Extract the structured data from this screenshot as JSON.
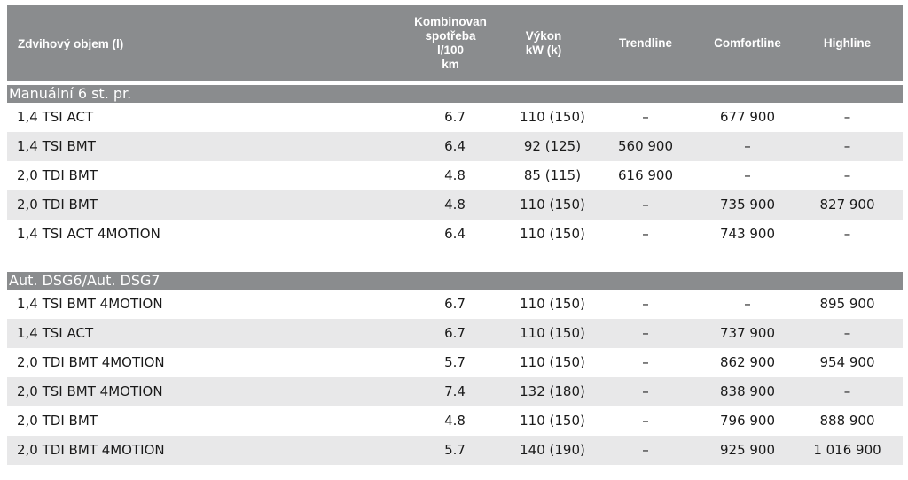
{
  "header": {
    "engine": "Zdvihový objem (l)",
    "consumption": [
      "Kombinovan",
      "spotřeba",
      "l/100",
      "km"
    ],
    "power": [
      "Výkon",
      "kW (k)"
    ],
    "trendline": "Trendline",
    "comfortline": "Comfortline",
    "highline": "Highline"
  },
  "sections": [
    {
      "title": "Manuální 6 st. pr.",
      "rows": [
        {
          "engine": "1,4 TSI ACT",
          "consumption": "6.7",
          "power": "110 (150)",
          "trendline": "–",
          "comfortline": "677 900",
          "highline": "–"
        },
        {
          "engine": "1,4 TSI BMT",
          "consumption": "6.4",
          "power": "92 (125)",
          "trendline": "560 900",
          "comfortline": "–",
          "highline": "–"
        },
        {
          "engine": "2,0 TDI BMT",
          "consumption": "4.8",
          "power": "85 (115)",
          "trendline": "616 900",
          "comfortline": "–",
          "highline": "–"
        },
        {
          "engine": "2,0 TDI BMT",
          "consumption": "4.8",
          "power": "110 (150)",
          "trendline": "–",
          "comfortline": "735 900",
          "highline": "827 900"
        },
        {
          "engine": "1,4 TSI ACT 4MOTION",
          "consumption": "6.4",
          "power": "110 (150)",
          "trendline": "–",
          "comfortline": "743 900",
          "highline": "–"
        }
      ]
    },
    {
      "title": "Aut. DSG6/Aut. DSG7",
      "rows": [
        {
          "engine": "1,4 TSI BMT 4MOTION",
          "consumption": "6.7",
          "power": "110 (150)",
          "trendline": "–",
          "comfortline": "–",
          "highline": "895 900"
        },
        {
          "engine": "1,4 TSI ACT",
          "consumption": "6.7",
          "power": "110 (150)",
          "trendline": "–",
          "comfortline": "737 900",
          "highline": "–"
        },
        {
          "engine": "2,0 TDI BMT 4MOTION",
          "consumption": "5.7",
          "power": "110 (150)",
          "trendline": "–",
          "comfortline": "862 900",
          "highline": "954 900"
        },
        {
          "engine": "2,0 TSI BMT 4MOTION",
          "consumption": "7.4",
          "power": "132 (180)",
          "trendline": "–",
          "comfortline": "838 900",
          "highline": "–"
        },
        {
          "engine": "2,0 TDI BMT",
          "consumption": "4.8",
          "power": "110 (150)",
          "trendline": "–",
          "comfortline": "796 900",
          "highline": "888 900"
        },
        {
          "engine": "2,0 TDI BMT 4MOTION",
          "consumption": "5.7",
          "power": "140 (190)",
          "trendline": "–",
          "comfortline": "925 900",
          "highline": "1 016 900"
        }
      ]
    }
  ],
  "colors": {
    "header_bg": "#8a8c8e",
    "row_shade": "#e8e8e9",
    "header_text": "#ffffff"
  }
}
